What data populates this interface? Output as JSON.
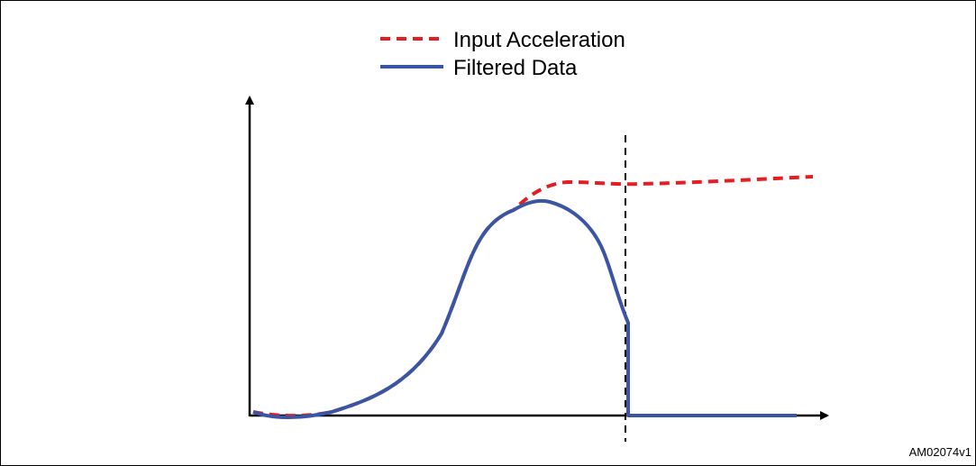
{
  "figure_id": "AM02074v1",
  "legend": {
    "input_label": "Input Acceleration",
    "filtered_label": "Filtered Data"
  },
  "colors": {
    "input": "#e31e24",
    "filtered": "#3a55a4",
    "axis": "#000000",
    "marker": "#000000"
  }
}
